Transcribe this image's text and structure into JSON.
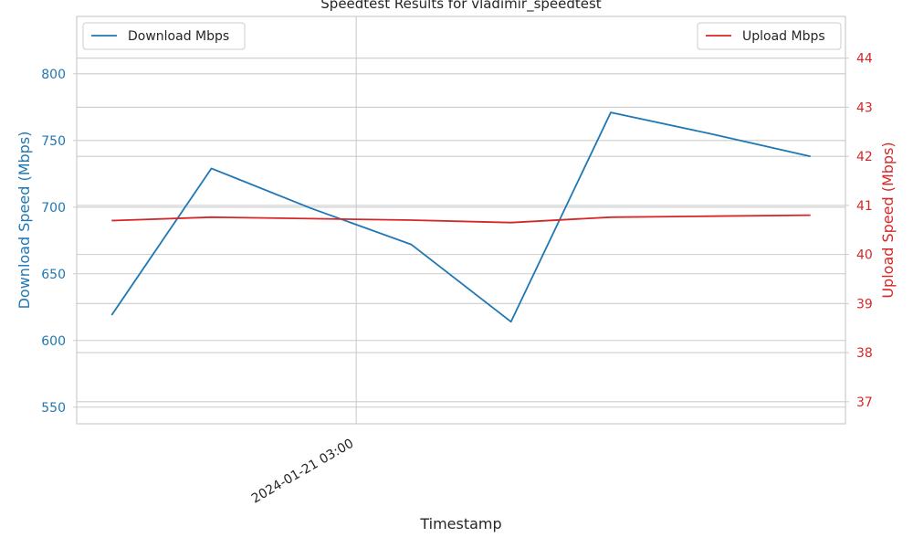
{
  "chart_data": {
    "type": "line",
    "title": "Speedtest Results for vladimir_speedtest",
    "xlabel": "Timestamp",
    "x_tick_labels": [
      {
        "x": 2.45,
        "label": "2024-01-21 03:00"
      }
    ],
    "x": [
      0,
      1,
      2,
      3,
      4,
      5,
      6,
      7
    ],
    "xlim": [
      -0.35,
      7.35
    ],
    "grid": true,
    "axes": {
      "left": {
        "label": "Download Speed (Mbps)",
        "color": "#1f77b4",
        "ylim": [
          537.5,
          843
        ],
        "ticks": [
          550,
          600,
          650,
          700,
          750,
          800
        ]
      },
      "right": {
        "label": "Upload Speed (Mbps)",
        "color": "#d62728",
        "ylim": [
          36.55,
          44.85
        ],
        "ticks": [
          37,
          38,
          39,
          40,
          41,
          42,
          43,
          44
        ]
      }
    },
    "series": [
      {
        "name": "Download Mbps",
        "axis": "left",
        "color": "#1f77b4",
        "values": [
          619,
          729,
          699,
          672,
          614,
          771,
          755,
          738
        ],
        "legend_position": "top-left"
      },
      {
        "name": "Upload Mbps",
        "axis": "right",
        "color": "#d62728",
        "values": [
          40.69,
          40.76,
          40.73,
          40.7,
          40.65,
          40.76,
          40.78,
          40.8
        ],
        "legend_position": "top-right"
      }
    ]
  }
}
